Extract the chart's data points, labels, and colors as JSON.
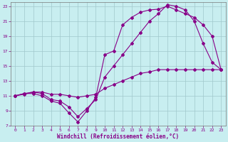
{
  "bg_color": "#c8eef0",
  "line_color": "#880088",
  "grid_color": "#a0c8cc",
  "xlabel": "Windchill (Refroidissement éolien,°C)",
  "xlim": [
    -0.5,
    23.5
  ],
  "ylim": [
    7,
    23.5
  ],
  "xticks": [
    0,
    1,
    2,
    3,
    4,
    5,
    6,
    7,
    8,
    9,
    10,
    11,
    12,
    13,
    14,
    15,
    16,
    17,
    18,
    19,
    20,
    21,
    22,
    23
  ],
  "yticks": [
    7,
    9,
    11,
    13,
    15,
    17,
    19,
    21,
    23
  ],
  "line1_x": [
    0,
    1,
    2,
    3,
    4,
    5,
    6,
    7,
    8,
    9,
    10,
    11,
    12,
    13,
    14,
    15,
    16,
    17,
    18,
    19,
    20,
    21,
    22,
    23
  ],
  "line1_y": [
    11.0,
    11.3,
    11.3,
    11.0,
    10.3,
    10.0,
    8.7,
    7.5,
    9.0,
    10.8,
    16.5,
    17.0,
    20.5,
    21.5,
    22.2,
    22.5,
    22.6,
    23.0,
    22.5,
    22.0,
    21.5,
    20.5,
    19.0,
    14.5
  ],
  "line2_x": [
    0,
    1,
    2,
    3,
    4,
    5,
    6,
    7,
    8,
    9,
    10,
    11,
    12,
    13,
    14,
    15,
    16,
    17,
    18,
    19,
    20,
    21,
    22,
    23
  ],
  "line2_y": [
    11.0,
    11.3,
    11.5,
    11.3,
    10.5,
    10.3,
    9.5,
    8.2,
    9.3,
    10.5,
    13.5,
    15.0,
    16.5,
    18.0,
    19.5,
    21.0,
    22.0,
    23.2,
    23.0,
    22.5,
    21.0,
    18.0,
    15.5,
    14.5
  ],
  "line3_x": [
    0,
    1,
    2,
    3,
    4,
    5,
    6,
    7,
    8,
    9,
    10,
    11,
    12,
    13,
    14,
    15,
    16,
    17,
    18,
    19,
    20,
    21,
    22,
    23
  ],
  "line3_y": [
    11.0,
    11.2,
    11.5,
    11.5,
    11.2,
    11.2,
    11.0,
    10.8,
    11.0,
    11.2,
    12.0,
    12.5,
    13.0,
    13.5,
    14.0,
    14.2,
    14.5,
    14.5,
    14.5,
    14.5,
    14.5,
    14.5,
    14.5,
    14.5
  ]
}
